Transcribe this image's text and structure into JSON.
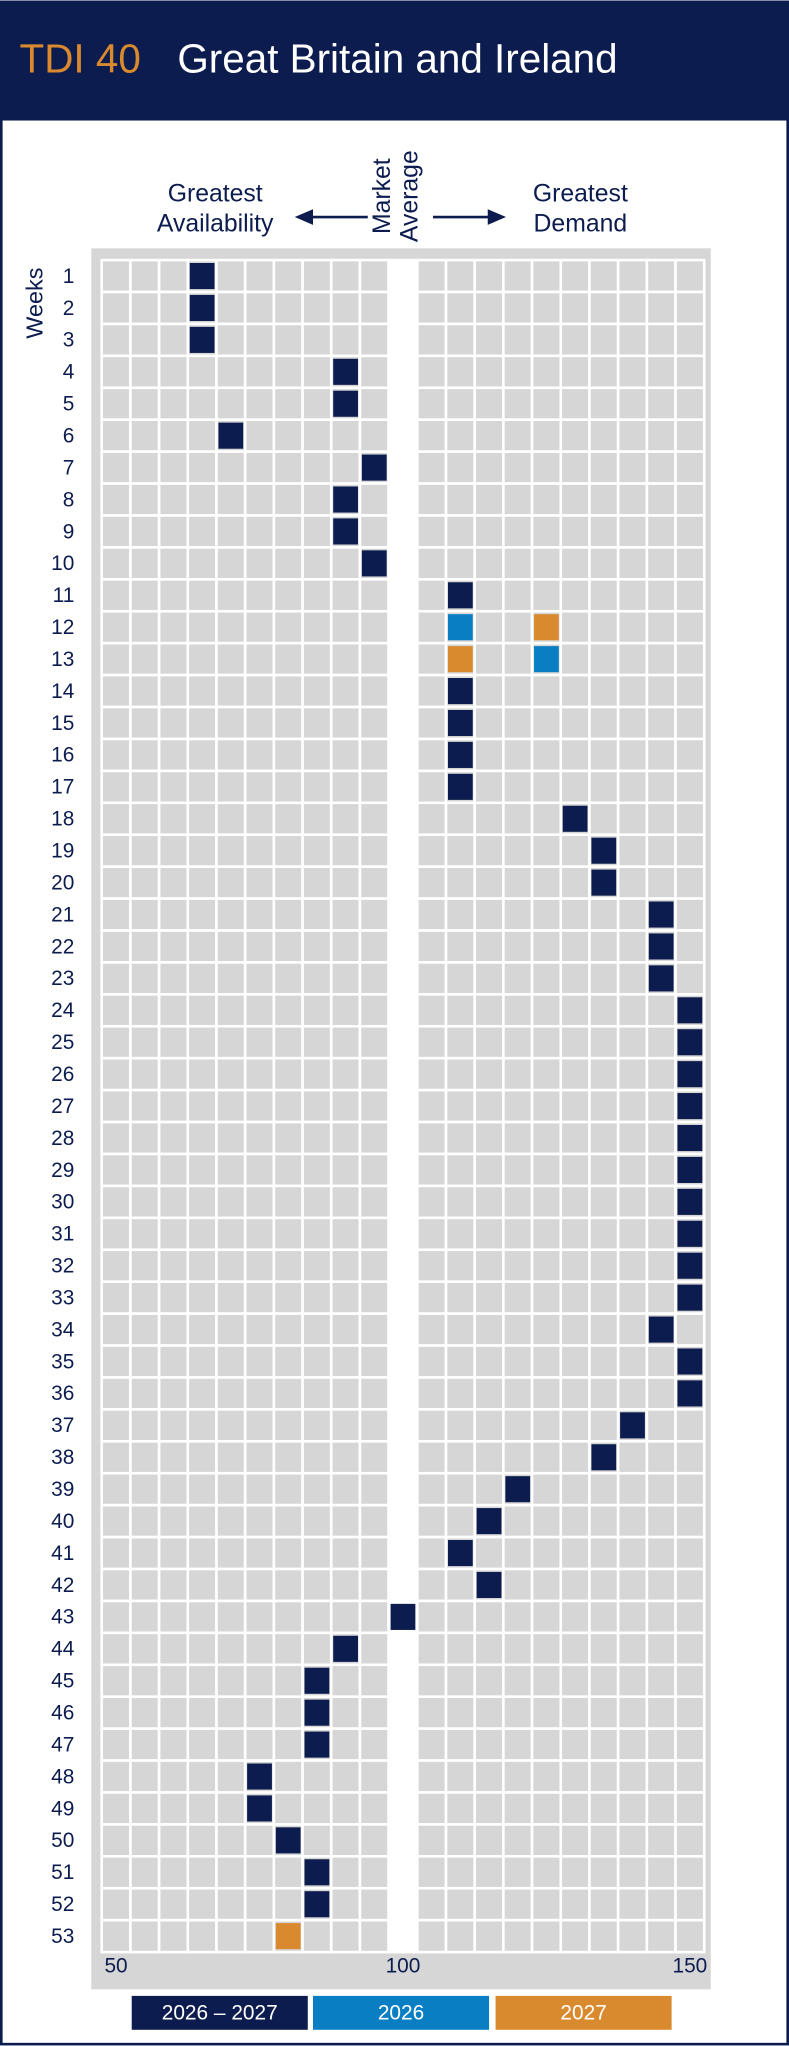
{
  "chart_data": {
    "type": "dot_grid",
    "index_label": "TDI 40",
    "title": "Great Britain and Ireland",
    "left_label": [
      "Greatest",
      "Availability"
    ],
    "center_label": [
      "Market",
      "Average"
    ],
    "right_label": [
      "Greatest",
      "Demand"
    ],
    "ylabel": "Weeks",
    "categories": [
      "1",
      "2",
      "3",
      "4",
      "5",
      "6",
      "7",
      "8",
      "9",
      "10",
      "11",
      "12",
      "13",
      "14",
      "15",
      "16",
      "17",
      "18",
      "19",
      "20",
      "21",
      "22",
      "23",
      "24",
      "25",
      "26",
      "27",
      "28",
      "29",
      "30",
      "31",
      "32",
      "33",
      "34",
      "35",
      "36",
      "37",
      "38",
      "39",
      "40",
      "41",
      "42",
      "43",
      "44",
      "45",
      "46",
      "47",
      "48",
      "49",
      "50",
      "51",
      "52",
      "53"
    ],
    "xlim": [
      47.5,
      152.5
    ],
    "xticks": [
      50,
      100,
      150
    ],
    "column_step": 5,
    "series": [
      {
        "name": "2026 – 2027",
        "color": "#0d1c4e",
        "values": [
          65,
          65,
          65,
          90,
          90,
          70,
          95,
          90,
          90,
          95,
          110,
          null,
          null,
          110,
          110,
          110,
          110,
          130,
          135,
          135,
          145,
          145,
          145,
          150,
          150,
          150,
          150,
          150,
          150,
          150,
          150,
          150,
          150,
          145,
          150,
          150,
          140,
          135,
          120,
          115,
          110,
          115,
          100,
          90,
          85,
          85,
          85,
          75,
          75,
          80,
          85,
          85,
          null
        ]
      },
      {
        "name": "2026",
        "color": "#0a7ec2",
        "values": [
          null,
          null,
          null,
          null,
          null,
          null,
          null,
          null,
          null,
          null,
          null,
          110,
          125,
          null,
          null,
          null,
          null,
          null,
          null,
          null,
          null,
          null,
          null,
          null,
          null,
          null,
          null,
          null,
          null,
          null,
          null,
          null,
          null,
          null,
          null,
          null,
          null,
          null,
          null,
          null,
          null,
          null,
          null,
          null,
          null,
          null,
          null,
          null,
          null,
          null,
          null,
          null,
          null
        ]
      },
      {
        "name": "2027",
        "color": "#d98a2e",
        "values": [
          null,
          null,
          null,
          null,
          null,
          null,
          null,
          null,
          null,
          null,
          null,
          125,
          110,
          null,
          null,
          null,
          null,
          null,
          null,
          null,
          null,
          null,
          null,
          null,
          null,
          null,
          null,
          null,
          null,
          null,
          null,
          null,
          null,
          null,
          null,
          null,
          null,
          null,
          null,
          null,
          null,
          null,
          null,
          null,
          null,
          null,
          null,
          null,
          null,
          null,
          null,
          null,
          80
        ]
      }
    ]
  }
}
